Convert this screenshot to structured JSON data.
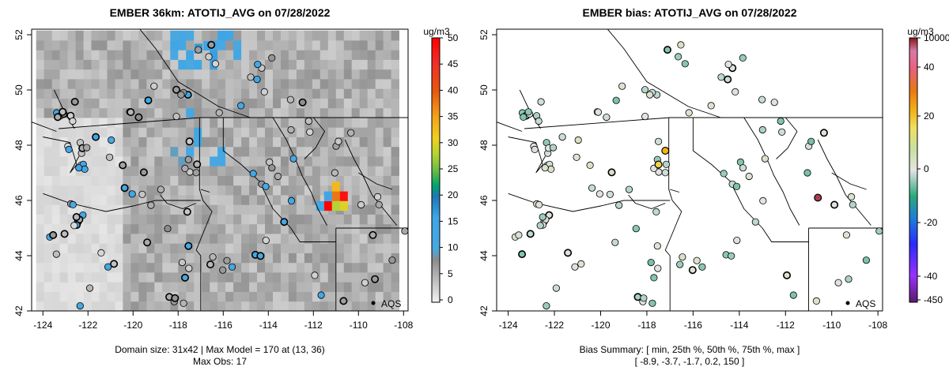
{
  "chart_data": [
    {
      "type": "heatmap",
      "title": "EMBER 36km: ATOTIJ_AVG on 07/28/2022",
      "xlabel": "",
      "ylabel": "",
      "xlim": [
        -124.5,
        -107.8
      ],
      "ylim": [
        42,
        52.2
      ],
      "x_ticks": [
        "-124",
        "-122",
        "-120",
        "-118",
        "-116",
        "-114",
        "-112",
        "-110",
        "-108"
      ],
      "y_ticks": [
        "42",
        "44",
        "46",
        "48",
        "50",
        "52"
      ],
      "colorbar": {
        "unit": "ug/m3",
        "ticks": [
          "0",
          "5",
          "10",
          "15",
          "20",
          "25",
          "30",
          "35",
          "40",
          "45",
          "50"
        ],
        "range": [
          0,
          50
        ]
      },
      "legend_label": "AQS",
      "footer_lines": [
        "Domain size: 31x42 | Max Model = 170 at (13, 36)",
        "Max Obs: 17"
      ],
      "hotspots": [
        {
          "lon": -111.35,
          "lat": 45.8,
          "value": 52
        },
        {
          "lon": -111.0,
          "lat": 45.8,
          "value": 28
        },
        {
          "lon": -110.65,
          "lat": 45.8,
          "value": 30
        },
        {
          "lon": -111.0,
          "lat": 46.15,
          "value": 38
        },
        {
          "lon": -110.65,
          "lat": 46.15,
          "value": 48
        },
        {
          "lon": -111.0,
          "lat": 46.5,
          "value": 33
        },
        {
          "lon": -111.35,
          "lat": 46.15,
          "value": 16
        },
        {
          "lon": -111.7,
          "lat": 45.8,
          "value": 14
        },
        {
          "lon": -117.1,
          "lat": 51.5,
          "value": 17
        },
        {
          "lon": -116.7,
          "lat": 51.6,
          "value": 15
        }
      ]
    },
    {
      "type": "scatter",
      "title": "EMBER bias: ATOTIJ_AVG on 07/28/2022",
      "xlabel": "",
      "ylabel": "",
      "xlim": [
        -124.5,
        -107.8
      ],
      "ylim": [
        42,
        52.2
      ],
      "x_ticks": [
        "-124",
        "-122",
        "-120",
        "-118",
        "-116",
        "-114",
        "-112",
        "-110",
        "-108"
      ],
      "y_ticks": [
        "42",
        "44",
        "46",
        "48",
        "50",
        "52"
      ],
      "colorbar": {
        "unit": "ug/m3",
        "ticks": [
          "10000",
          "40",
          "20",
          "0",
          "-20",
          "-40",
          "-450"
        ]
      },
      "legend_label": "AQS",
      "footer_lines": [
        "Bias Summary: [ min, 25th %, 50th %, 75th %, max ]",
        "[ -8.9,   -3.7,   -1.7,   0.2,   150 ]"
      ],
      "highlight_points": [
        {
          "lon": -110.6,
          "lat": 46.1,
          "bias": 150
        },
        {
          "lon": -117.2,
          "lat": 47.8,
          "bias": 22
        },
        {
          "lon": -117.5,
          "lat": 47.3,
          "bias": 18
        }
      ]
    }
  ]
}
